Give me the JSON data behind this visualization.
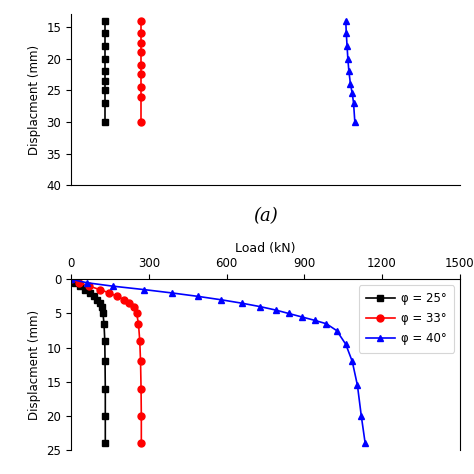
{
  "subplot_a": {
    "ylabel": "Displacment (mm)",
    "xlim": [
      0,
      1500
    ],
    "ylim_bottom": 40,
    "ylim_top": 13,
    "yticks": [
      15,
      20,
      25,
      30,
      35,
      40
    ],
    "label": "(a)",
    "series": [
      {
        "color": "black",
        "marker": "s",
        "x": [
          132,
          132,
          132,
          132,
          132,
          132,
          132,
          132,
          132
        ],
        "y": [
          14,
          16,
          18,
          20,
          22,
          23.5,
          25,
          27,
          30
        ]
      },
      {
        "color": "red",
        "marker": "o",
        "x": [
          271,
          271,
          271,
          271,
          271,
          271,
          271,
          271,
          271
        ],
        "y": [
          14,
          16,
          17.5,
          19,
          21,
          22.5,
          24.5,
          26,
          30
        ]
      },
      {
        "color": "blue",
        "marker": "^",
        "x": [
          1060,
          1062,
          1065,
          1068,
          1072,
          1078,
          1085,
          1090,
          1095
        ],
        "y": [
          14,
          16,
          18,
          20,
          22,
          24,
          25.5,
          27,
          30
        ]
      }
    ]
  },
  "subplot_b": {
    "xlabel": "Load (kN)",
    "ylabel": "Displacment (mm)",
    "xlim": [
      0,
      1500
    ],
    "ylim_bottom": 25,
    "ylim_top": 0,
    "xticks": [
      0,
      300,
      600,
      900,
      1200,
      1500
    ],
    "yticks": [
      0,
      5,
      10,
      15,
      20,
      25
    ],
    "legend_entries": [
      {
        "label": "φ = 25°",
        "color": "black",
        "marker": "s"
      },
      {
        "label": "φ = 33°",
        "color": "red",
        "marker": "o"
      },
      {
        "label": "φ = 40°",
        "color": "blue",
        "marker": "^"
      }
    ],
    "series": [
      {
        "color": "black",
        "marker": "s",
        "label": "φ = 25°",
        "x": [
          0,
          15,
          35,
          55,
          72,
          87,
          100,
          110,
          118,
          123,
          127,
          130,
          131,
          132,
          132,
          132
        ],
        "y": [
          0,
          0.5,
          1.0,
          1.5,
          2.0,
          2.5,
          3.0,
          3.5,
          4.0,
          5.0,
          6.5,
          9.0,
          12.0,
          16.0,
          20.0,
          24.0
        ]
      },
      {
        "color": "red",
        "marker": "o",
        "label": "φ = 33°",
        "x": [
          0,
          30,
          70,
          110,
          148,
          178,
          205,
          225,
          242,
          253,
          260,
          265,
          268,
          270,
          271,
          271
        ],
        "y": [
          0,
          0.5,
          1.0,
          1.5,
          2.0,
          2.5,
          3.0,
          3.5,
          4.0,
          5.0,
          6.5,
          9.0,
          12.0,
          16.0,
          20.0,
          24.0
        ]
      },
      {
        "color": "blue",
        "marker": "^",
        "label": "φ = 40°",
        "x": [
          0,
          60,
          160,
          280,
          390,
          490,
          580,
          660,
          730,
          790,
          840,
          890,
          940,
          985,
          1025,
          1060,
          1085,
          1105,
          1120,
          1135
        ],
        "y": [
          0,
          0.5,
          1.0,
          1.5,
          2.0,
          2.5,
          3.0,
          3.5,
          4.0,
          4.5,
          5.0,
          5.5,
          6.0,
          6.5,
          7.5,
          9.5,
          12.0,
          15.5,
          20.0,
          24.0
        ]
      }
    ]
  }
}
